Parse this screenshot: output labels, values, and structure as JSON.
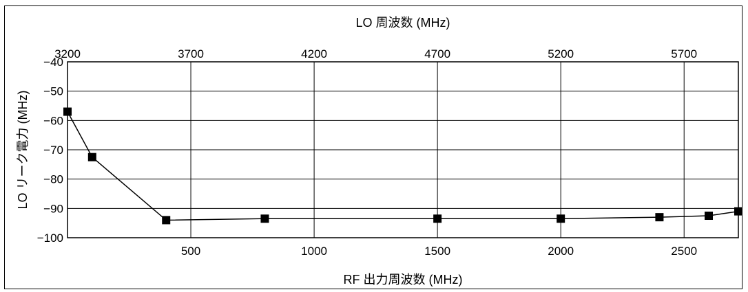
{
  "chart_data": {
    "type": "line",
    "title": "",
    "x_top_label": "LO 周波数 (MHz)",
    "x_top_ticks": [
      "3200",
      "3700",
      "4200",
      "4700",
      "5200",
      "5700"
    ],
    "x_top_tick_values": [
      3200,
      3700,
      4200,
      4700,
      5200,
      5700
    ],
    "x_top_lim": [
      3200,
      5920
    ],
    "xlabel": "RF 出力周波数 (MHz)",
    "x_ticks": [
      "500",
      "1000",
      "1500",
      "2000",
      "2500"
    ],
    "x_tick_values": [
      500,
      1000,
      1500,
      2000,
      2500
    ],
    "xlim": [
      0,
      2720
    ],
    "ylabel": "LO リーク電力 (MHz)",
    "y_ticks": [
      "−40",
      "−50",
      "−60",
      "−70",
      "−80",
      "−90",
      "−100"
    ],
    "y_tick_values": [
      -40,
      -50,
      -60,
      -70,
      -80,
      -90,
      -100
    ],
    "ylim": [
      -100,
      -40
    ],
    "grid": true,
    "marker": "square",
    "line_color": "#000000",
    "series": [
      {
        "x": [
          0,
          100,
          400,
          800,
          1500,
          2000,
          2400,
          2600,
          2720
        ],
        "y": [
          -57,
          -72.5,
          -94,
          -93.5,
          -93.5,
          -93.5,
          -93,
          -92.5,
          -91
        ]
      }
    ]
  }
}
